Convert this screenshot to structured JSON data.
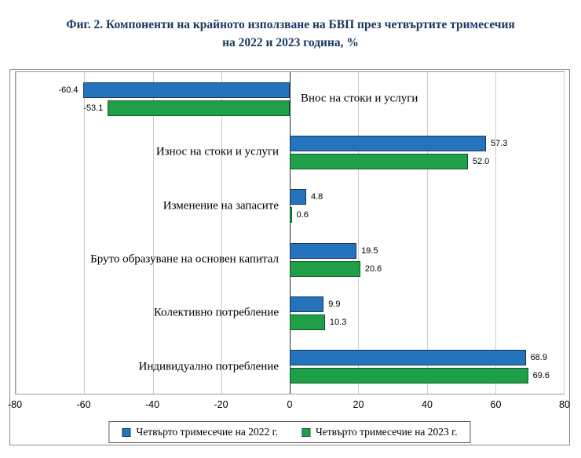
{
  "title": {
    "line1": "Фиг. 2. Компоненти на крайното използване на БВП през четвъртите тримесечия",
    "line2": "на 2022 и 2023 година, %"
  },
  "colors": {
    "title_text": "#17375E",
    "series_2022": "#2374BD",
    "series_2022_border": "#17375E",
    "series_2023": "#1FA048",
    "series_2023_border": "#0E5A2A",
    "gridline": "#cccccc",
    "zero_axis": "#2b2b2b"
  },
  "chart_data": {
    "type": "bar",
    "orientation": "horizontal",
    "title": "Фиг. 2. Компоненти на крайното използване на БВП през четвъртите тримесечия на 2022 и 2023 година, %",
    "categories": [
      "Внос на стоки и услуги",
      "Износ на стоки и услуги",
      "Изменение на запасите",
      "Бруто образуване на основен капитал",
      "Колективно потребление",
      "Индивидуално потребление"
    ],
    "series": [
      {
        "name": "Четвърто тримесечие на 2022 г.",
        "color": "#2374BD",
        "border": "#17375E",
        "values": [
          -60.4,
          57.3,
          4.8,
          19.5,
          9.9,
          68.9
        ],
        "labels": [
          "-60.4",
          "57.3",
          "4.8",
          "19.5",
          "9.9",
          "68.9"
        ]
      },
      {
        "name": "Четвърто тримесечие на 2023 г.",
        "color": "#1FA048",
        "border": "#0E5A2A",
        "values": [
          -53.1,
          52.0,
          0.6,
          20.6,
          10.3,
          69.6
        ],
        "labels": [
          "-53.1",
          "52.0",
          "0.6",
          "20.6",
          "10.3",
          "69.6"
        ]
      }
    ],
    "xlim": [
      -80,
      80
    ],
    "ticks": [
      "-80",
      "-60",
      "-40",
      "-20",
      "0",
      "20",
      "40",
      "60",
      "80"
    ],
    "grid": true,
    "legend_position": "bottom"
  }
}
